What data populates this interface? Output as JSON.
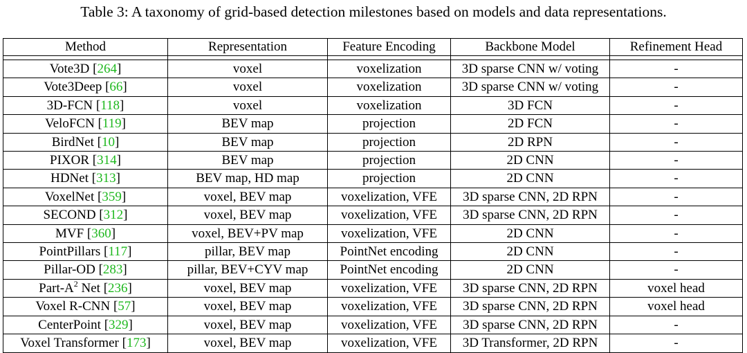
{
  "caption": "Table 3: A taxonomy of grid-based detection milestones based on models and data representations.",
  "headers": {
    "method": "Method",
    "representation": "Representation",
    "feature_encoding": "Feature Encoding",
    "backbone_model": "Backbone Model",
    "refinement_head": "Refinement Head"
  },
  "rows": [
    {
      "name": "Vote3D",
      "sup": "",
      "name2": "",
      "cite": "264",
      "representation": "voxel",
      "feature_encoding": "voxelization",
      "backbone": "3D sparse CNN w/ voting",
      "refinement": "-"
    },
    {
      "name": "Vote3Deep",
      "sup": "",
      "name2": "",
      "cite": "66",
      "representation": "voxel",
      "feature_encoding": "voxelization",
      "backbone": "3D sparse CNN w/ voting",
      "refinement": "-"
    },
    {
      "name": "3D-FCN",
      "sup": "",
      "name2": "",
      "cite": "118",
      "representation": "voxel",
      "feature_encoding": "voxelization",
      "backbone": "3D FCN",
      "refinement": "-"
    },
    {
      "name": "VeloFCN",
      "sup": "",
      "name2": "",
      "cite": "119",
      "representation": "BEV map",
      "feature_encoding": "projection",
      "backbone": "2D FCN",
      "refinement": "-"
    },
    {
      "name": "BirdNet",
      "sup": "",
      "name2": "",
      "cite": "10",
      "representation": "BEV map",
      "feature_encoding": "projection",
      "backbone": "2D RPN",
      "refinement": "-"
    },
    {
      "name": "PIXOR",
      "sup": "",
      "name2": "",
      "cite": "314",
      "representation": "BEV map",
      "feature_encoding": "projection",
      "backbone": "2D CNN",
      "refinement": "-"
    },
    {
      "name": "HDNet",
      "sup": "",
      "name2": "",
      "cite": "313",
      "representation": "BEV map, HD map",
      "feature_encoding": "projection",
      "backbone": "2D CNN",
      "refinement": "-"
    },
    {
      "name": "VoxelNet",
      "sup": "",
      "name2": "",
      "cite": "359",
      "representation": "voxel, BEV map",
      "feature_encoding": "voxelization, VFE",
      "backbone": "3D sparse CNN, 2D RPN",
      "refinement": "-"
    },
    {
      "name": "SECOND",
      "sup": "",
      "name2": "",
      "cite": "312",
      "representation": "voxel, BEV map",
      "feature_encoding": "voxelization, VFE",
      "backbone": "3D sparse CNN, 2D RPN",
      "refinement": "-"
    },
    {
      "name": "MVF",
      "sup": "",
      "name2": "",
      "cite": "360",
      "representation": "voxel, BEV+PV map",
      "feature_encoding": "voxelization, VFE",
      "backbone": "2D CNN",
      "refinement": "-"
    },
    {
      "name": "PointPillars",
      "sup": "",
      "name2": "",
      "cite": "117",
      "representation": "pillar, BEV map",
      "feature_encoding": "PointNet encoding",
      "backbone": "2D CNN",
      "refinement": "-"
    },
    {
      "name": "Pillar-OD",
      "sup": "",
      "name2": "",
      "cite": "283",
      "representation": "pillar, BEV+CYV map",
      "feature_encoding": "PointNet encoding",
      "backbone": "2D CNN",
      "refinement": "-"
    },
    {
      "name": "Part-A",
      "sup": "2",
      "name2": "Net",
      "cite": "236",
      "representation": "voxel, BEV map",
      "feature_encoding": "voxelization, VFE",
      "backbone": "3D sparse CNN, 2D RPN",
      "refinement": "voxel head"
    },
    {
      "name": "Voxel R-CNN",
      "sup": "",
      "name2": "",
      "cite": "57",
      "representation": "voxel, BEV map",
      "feature_encoding": "voxelization, VFE",
      "backbone": "3D sparse CNN, 2D RPN",
      "refinement": "voxel head"
    },
    {
      "name": "CenterPoint",
      "sup": "",
      "name2": "",
      "cite": "329",
      "representation": "voxel, BEV map",
      "feature_encoding": "voxelization, VFE",
      "backbone": "3D sparse CNN, 2D RPN",
      "refinement": "-"
    },
    {
      "name": "Voxel Transformer",
      "sup": "",
      "name2": "",
      "cite": "173",
      "representation": "voxel, BEV map",
      "feature_encoding": "voxelization, VFE",
      "backbone": "3D Transformer, 2D RPN",
      "refinement": "-"
    }
  ],
  "colors": {
    "citation": "#1fb81f",
    "text": "#000000"
  }
}
